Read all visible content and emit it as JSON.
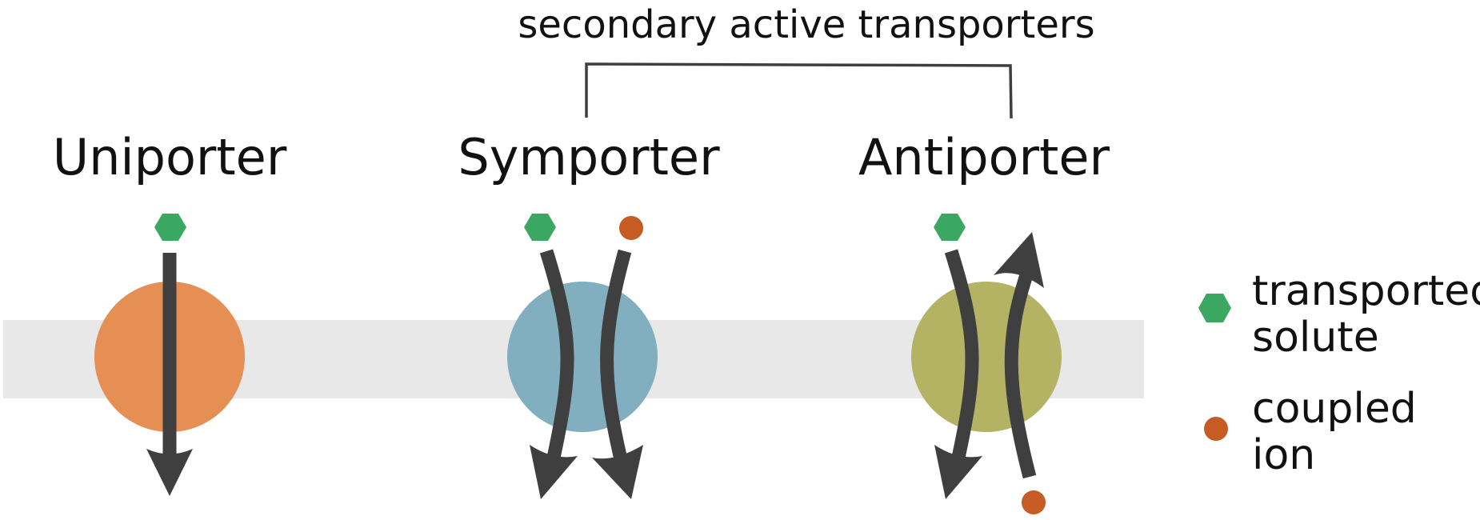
{
  "group_label": "secondary active transporters",
  "transporters": [
    {
      "label": "Uniporter"
    },
    {
      "label": "Symporter"
    },
    {
      "label": "Antiporter"
    }
  ],
  "legend": {
    "solute": {
      "line1": "transported",
      "line2": "solute"
    },
    "ion": {
      "line1": "coupled",
      "line2": "ion"
    }
  },
  "colors": {
    "membrane": "#e8e8e8",
    "uniporter": "#e58f55",
    "symporter": "#81afbf",
    "antiporter": "#b4b364",
    "solute": "#3ba862",
    "ion": "#c65c23",
    "arrow": "#3f3f3f"
  }
}
